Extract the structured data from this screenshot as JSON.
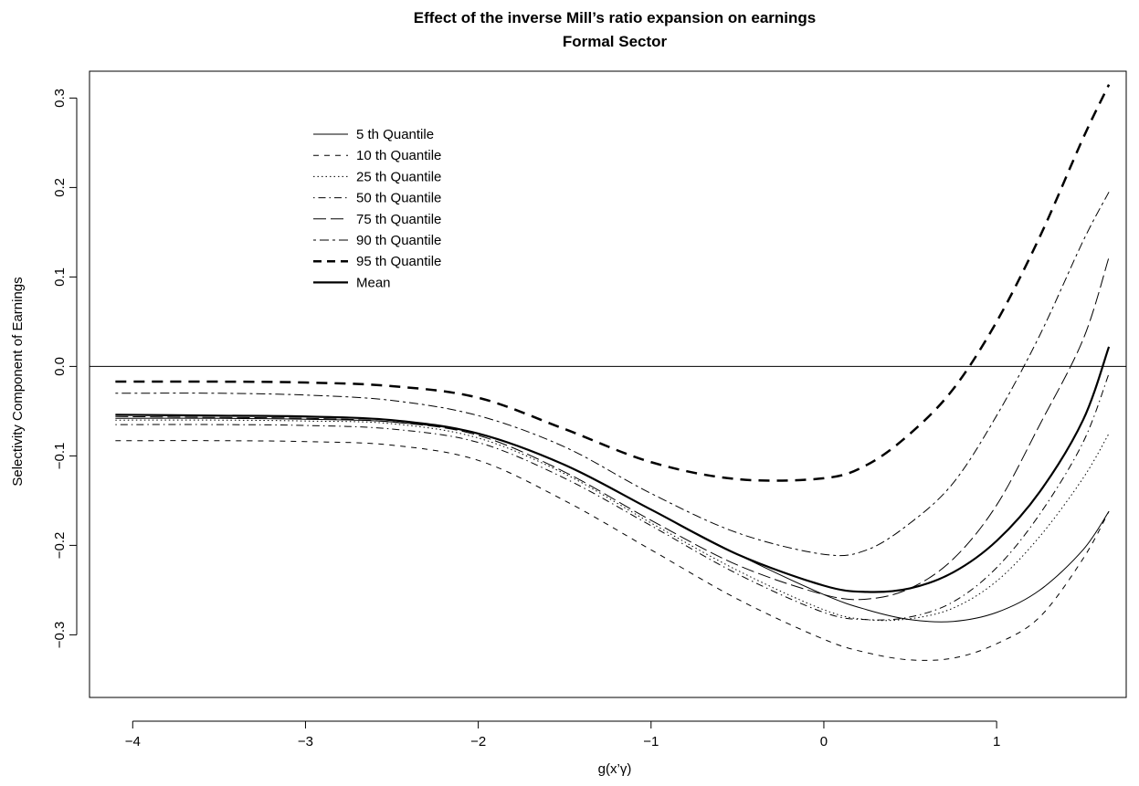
{
  "chart_data": {
    "type": "line",
    "title": "Effect of the inverse Mill’s ratio expansion on earnings",
    "subtitle": "Formal Sector",
    "xlabel": "g(x’γ)",
    "ylabel": "Selectivity Component of Earnings",
    "xlim": [
      -4.25,
      1.75
    ],
    "ylim": [
      -0.37,
      0.33
    ],
    "x_ticks": [
      -4,
      -3,
      -2,
      -1,
      0,
      1
    ],
    "x_tick_labels": [
      "−4",
      "−3",
      "−2",
      "−1",
      "0",
      "1"
    ],
    "y_ticks": [
      -0.3,
      -0.2,
      -0.1,
      0.0,
      0.1,
      0.2,
      0.3
    ],
    "y_tick_labels": [
      "−0.3",
      "−0.2",
      "−0.1",
      "0.0",
      "0.1",
      "0.2",
      "0.3"
    ],
    "reference_line_y": 0.0,
    "grid": false,
    "legend_position": "top-left",
    "x": [
      -4.1,
      -3.5,
      -3.0,
      -2.5,
      -2.0,
      -1.5,
      -1.0,
      -0.5,
      0.0,
      0.25,
      0.5,
      0.75,
      1.0,
      1.25,
      1.5,
      1.65
    ],
    "series": [
      {
        "name": "5 th Quantile",
        "style": "solid",
        "width": 1,
        "values": [
          -0.058,
          -0.058,
          -0.059,
          -0.062,
          -0.075,
          -0.11,
          -0.16,
          -0.21,
          -0.255,
          -0.272,
          -0.283,
          -0.285,
          -0.275,
          -0.25,
          -0.205,
          -0.162
        ]
      },
      {
        "name": "10 th Quantile",
        "style": "dashed",
        "width": 1,
        "values": [
          -0.083,
          -0.083,
          -0.084,
          -0.088,
          -0.105,
          -0.15,
          -0.205,
          -0.26,
          -0.305,
          -0.32,
          -0.328,
          -0.326,
          -0.31,
          -0.28,
          -0.215,
          -0.162
        ]
      },
      {
        "name": "25 th Quantile",
        "style": "dotted",
        "width": 1,
        "values": [
          -0.06,
          -0.06,
          -0.061,
          -0.064,
          -0.08,
          -0.12,
          -0.175,
          -0.228,
          -0.272,
          -0.283,
          -0.282,
          -0.27,
          -0.24,
          -0.19,
          -0.125,
          -0.075
        ]
      },
      {
        "name": "50 th Quantile",
        "style": "dotdash",
        "width": 1,
        "values": [
          -0.065,
          -0.065,
          -0.066,
          -0.07,
          -0.085,
          -0.125,
          -0.178,
          -0.232,
          -0.275,
          -0.283,
          -0.28,
          -0.263,
          -0.225,
          -0.165,
          -0.085,
          -0.008
        ]
      },
      {
        "name": "75 th Quantile",
        "style": "longdash",
        "width": 1,
        "values": [
          -0.056,
          -0.057,
          -0.058,
          -0.062,
          -0.077,
          -0.118,
          -0.172,
          -0.222,
          -0.255,
          -0.26,
          -0.248,
          -0.215,
          -0.155,
          -0.065,
          0.03,
          0.122
        ]
      },
      {
        "name": "90 th Quantile",
        "style": "twodash",
        "width": 1,
        "values": [
          -0.03,
          -0.03,
          -0.032,
          -0.038,
          -0.055,
          -0.09,
          -0.142,
          -0.186,
          -0.21,
          -0.205,
          -0.175,
          -0.13,
          -0.055,
          0.035,
          0.14,
          0.195
        ]
      },
      {
        "name": "95 th Quantile",
        "style": "dashed",
        "width": 2.5,
        "values": [
          -0.017,
          -0.017,
          -0.018,
          -0.022,
          -0.035,
          -0.07,
          -0.107,
          -0.126,
          -0.125,
          -0.11,
          -0.075,
          -0.025,
          0.05,
          0.145,
          0.255,
          0.315
        ]
      },
      {
        "name": "Mean",
        "style": "solid",
        "width": 2.2,
        "values": [
          -0.054,
          -0.055,
          -0.056,
          -0.06,
          -0.075,
          -0.11,
          -0.16,
          -0.21,
          -0.245,
          -0.252,
          -0.248,
          -0.23,
          -0.195,
          -0.14,
          -0.06,
          0.022
        ]
      }
    ]
  }
}
